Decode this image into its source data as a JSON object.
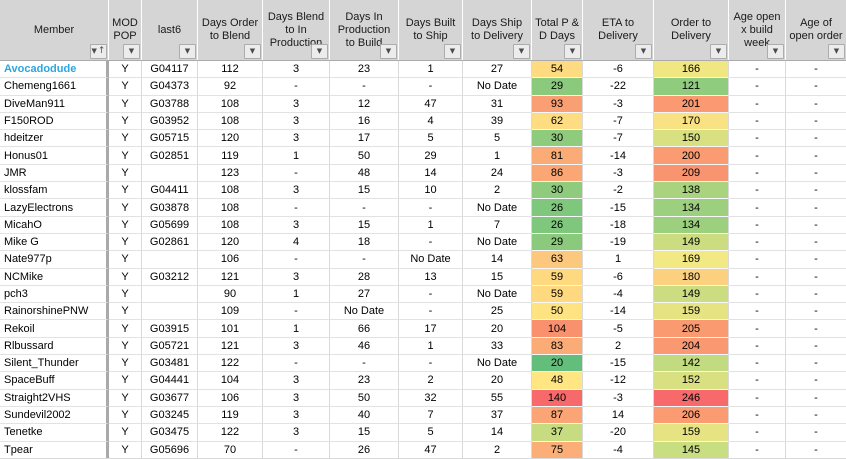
{
  "table": {
    "columns": [
      {
        "key": "member",
        "label": "Member",
        "sorted_ascending": true
      },
      {
        "key": "mod_pop",
        "label": "MOD POP"
      },
      {
        "key": "last6",
        "label": "last6"
      },
      {
        "key": "order_blend",
        "label": "Days Order to Blend"
      },
      {
        "key": "blend_prod",
        "label": "Days Blend to  In Production"
      },
      {
        "key": "prod_build",
        "label": "Days In Production to Build"
      },
      {
        "key": "built_ship",
        "label": "Days Built to Ship"
      },
      {
        "key": "ship_deliv",
        "label": "Days Ship to Delivery"
      },
      {
        "key": "total_pd",
        "label": "Total P & D Days"
      },
      {
        "key": "eta",
        "label": "ETA to Delivery"
      },
      {
        "key": "order_deliv",
        "label": "Order to Delivery"
      },
      {
        "key": "age_build",
        "label": "Age open x build week"
      },
      {
        "key": "age_order",
        "label": "Age of open order"
      }
    ],
    "rows": [
      {
        "member": "Avocadodude",
        "link": true,
        "mod_pop": "Y",
        "last6": "G04117",
        "order_blend": 112,
        "blend_prod": 3,
        "prod_build": 23,
        "built_ship": 1,
        "ship_deliv": 27,
        "total_pd": 54,
        "total_pd_bg": "#FEDB81",
        "eta": -6,
        "order_deliv": 166,
        "order_deliv_bg": "#F0E783",
        "age_build": "-",
        "age_order": "-"
      },
      {
        "member": "Chemeng1661",
        "link": false,
        "mod_pop": "Y",
        "last6": "G04373",
        "order_blend": 92,
        "blend_prod": "-",
        "prod_build": "-",
        "built_ship": "-",
        "ship_deliv": "No Date",
        "total_pd": 29,
        "total_pd_bg": "#8BCA7D",
        "eta": -22,
        "order_deliv": 121,
        "order_deliv_bg": "#90CC7E",
        "age_build": "-",
        "age_order": "-"
      },
      {
        "member": "DiveMan911",
        "link": false,
        "mod_pop": "Y",
        "last6": "G03788",
        "order_blend": 108,
        "blend_prod": 3,
        "prod_build": 12,
        "built_ship": 47,
        "ship_deliv": 31,
        "total_pd": 93,
        "total_pd_bg": "#FA9F73",
        "eta": -3,
        "order_deliv": 201,
        "order_deliv_bg": "#FA9972",
        "age_build": "-",
        "age_order": "-"
      },
      {
        "member": "F150ROD",
        "link": false,
        "mod_pop": "Y",
        "last6": "G03952",
        "order_blend": 108,
        "blend_prod": 3,
        "prod_build": 16,
        "built_ship": 4,
        "ship_deliv": 39,
        "total_pd": 62,
        "total_pd_bg": "#FEDC81",
        "eta": -7,
        "order_deliv": 170,
        "order_deliv_bg": "#F9E283",
        "age_build": "-",
        "age_order": "-"
      },
      {
        "member": "hdeitzer",
        "link": false,
        "mod_pop": "Y",
        "last6": "G05715",
        "order_blend": 120,
        "blend_prod": 3,
        "prod_build": 17,
        "built_ship": 5,
        "ship_deliv": 5,
        "total_pd": 30,
        "total_pd_bg": "#8ECB7D",
        "eta": -7,
        "order_deliv": 150,
        "order_deliv_bg": "#D8E081",
        "age_build": "-",
        "age_order": "-"
      },
      {
        "member": "Honus01",
        "link": false,
        "mod_pop": "Y",
        "last6": "G02851",
        "order_blend": 119,
        "blend_prod": 1,
        "prod_build": 50,
        "built_ship": 29,
        "ship_deliv": 1,
        "total_pd": 81,
        "total_pd_bg": "#FBAC76",
        "eta": -14,
        "order_deliv": 200,
        "order_deliv_bg": "#FA9B72",
        "age_build": "-",
        "age_order": "-"
      },
      {
        "member": "JMR",
        "link": false,
        "mod_pop": "Y",
        "last6": "",
        "order_blend": 123,
        "blend_prod": "-",
        "prod_build": 48,
        "built_ship": 14,
        "ship_deliv": 24,
        "total_pd": 86,
        "total_pd_bg": "#FBA775",
        "eta": -3,
        "order_deliv": 209,
        "order_deliv_bg": "#F99470",
        "age_build": "-",
        "age_order": "-"
      },
      {
        "member": "klossfam",
        "link": false,
        "mod_pop": "Y",
        "last6": "G04411",
        "order_blend": 108,
        "blend_prod": 3,
        "prod_build": 15,
        "built_ship": 10,
        "ship_deliv": 2,
        "total_pd": 30,
        "total_pd_bg": "#8ECB7D",
        "eta": -2,
        "order_deliv": 138,
        "order_deliv_bg": "#A9D37E",
        "age_build": "-",
        "age_order": "-"
      },
      {
        "member": "LazyElectrons",
        "link": false,
        "mod_pop": "Y",
        "last6": "G03878",
        "order_blend": 108,
        "blend_prod": "-",
        "prod_build": "-",
        "built_ship": "-",
        "ship_deliv": "No Date",
        "total_pd": 26,
        "total_pd_bg": "#7FC77C",
        "eta": -15,
        "order_deliv": 134,
        "order_deliv_bg": "#9DD07E",
        "age_build": "-",
        "age_order": "-"
      },
      {
        "member": "MicahO",
        "link": false,
        "mod_pop": "Y",
        "last6": "G05699",
        "order_blend": 108,
        "blend_prod": 3,
        "prod_build": 15,
        "built_ship": 1,
        "ship_deliv": 7,
        "total_pd": 26,
        "total_pd_bg": "#7FC77C",
        "eta": -18,
        "order_deliv": 134,
        "order_deliv_bg": "#9DD07E",
        "age_build": "-",
        "age_order": "-"
      },
      {
        "member": "Mike G",
        "link": false,
        "mod_pop": "Y",
        "last6": "G02861",
        "order_blend": 120,
        "blend_prod": 4,
        "prod_build": 18,
        "built_ship": "-",
        "ship_deliv": "No Date",
        "total_pd": 29,
        "total_pd_bg": "#8BCA7D",
        "eta": -19,
        "order_deliv": 149,
        "order_deliv_bg": "#CBDD80",
        "age_build": "-",
        "age_order": "-"
      },
      {
        "member": "Nate977p",
        "link": false,
        "mod_pop": "Y",
        "last6": "",
        "order_blend": 106,
        "blend_prod": "-",
        "prod_build": "-",
        "built_ship": "No Date",
        "ship_deliv": 14,
        "total_pd": 63,
        "total_pd_bg": "#FCC87D",
        "eta": 1,
        "order_deliv": 169,
        "order_deliv_bg": "#F2E884",
        "age_build": "-",
        "age_order": "-"
      },
      {
        "member": "NCMike",
        "link": false,
        "mod_pop": "Y",
        "last6": "G03212",
        "order_blend": 121,
        "blend_prod": 3,
        "prod_build": 28,
        "built_ship": 13,
        "ship_deliv": 15,
        "total_pd": 59,
        "total_pd_bg": "#FED980",
        "eta": -6,
        "order_deliv": 180,
        "order_deliv_bg": "#FBD07E",
        "age_build": "-",
        "age_order": "-"
      },
      {
        "member": "pch3",
        "link": false,
        "mod_pop": "Y",
        "last6": "",
        "order_blend": 90,
        "blend_prod": 1,
        "prod_build": 27,
        "built_ship": "-",
        "ship_deliv": "No Date",
        "total_pd": 59,
        "total_pd_bg": "#FED980",
        "eta": -4,
        "order_deliv": 149,
        "order_deliv_bg": "#CBDD80",
        "age_build": "-",
        "age_order": "-"
      },
      {
        "member": "RainorshinePNW",
        "link": false,
        "mod_pop": "Y",
        "last6": "",
        "order_blend": 109,
        "blend_prod": "-",
        "prod_build": "No Date",
        "built_ship": "-",
        "ship_deliv": 25,
        "total_pd": 50,
        "total_pd_bg": "#FFE383",
        "eta": -14,
        "order_deliv": 159,
        "order_deliv_bg": "#E6E482",
        "age_build": "-",
        "age_order": "-"
      },
      {
        "member": "Rekoil",
        "link": false,
        "mod_pop": "Y",
        "last6": "G03915",
        "order_blend": 101,
        "blend_prod": 1,
        "prod_build": 66,
        "built_ship": 17,
        "ship_deliv": 20,
        "total_pd": 104,
        "total_pd_bg": "#F9916F",
        "eta": -5,
        "order_deliv": 205,
        "order_deliv_bg": "#FA9A70",
        "age_build": "-",
        "age_order": "-"
      },
      {
        "member": "Rlbussard",
        "link": false,
        "mod_pop": "Y",
        "last6": "G05721",
        "order_blend": 121,
        "blend_prod": 3,
        "prod_build": 46,
        "built_ship": 1,
        "ship_deliv": 33,
        "total_pd": 83,
        "total_pd_bg": "#FBAB76",
        "eta": 2,
        "order_deliv": 204,
        "order_deliv_bg": "#FA9971",
        "age_build": "-",
        "age_order": "-"
      },
      {
        "member": "Silent_Thunder",
        "link": false,
        "mod_pop": "Y",
        "last6": "G03481",
        "order_blend": 122,
        "blend_prod": "-",
        "prod_build": "-",
        "built_ship": "-",
        "ship_deliv": "No Date",
        "total_pd": 20,
        "total_pd_bg": "#63BE7B",
        "eta": -15,
        "order_deliv": 142,
        "order_deliv_bg": "#C2DA80",
        "age_build": "-",
        "age_order": "-"
      },
      {
        "member": "SpaceBuff",
        "link": false,
        "mod_pop": "Y",
        "last6": "G04441",
        "order_blend": 104,
        "blend_prod": 3,
        "prod_build": 23,
        "built_ship": 2,
        "ship_deliv": 20,
        "total_pd": 48,
        "total_pd_bg": "#FFE683",
        "eta": -12,
        "order_deliv": 152,
        "order_deliv_bg": "#D9E081",
        "age_build": "-",
        "age_order": "-"
      },
      {
        "member": "Straight2VHS",
        "link": false,
        "mod_pop": "Y",
        "last6": "G03677",
        "order_blend": 106,
        "blend_prod": 3,
        "prod_build": 50,
        "built_ship": 32,
        "ship_deliv": 55,
        "total_pd": 140,
        "total_pd_bg": "#F8696B",
        "eta": -3,
        "order_deliv": 246,
        "order_deliv_bg": "#F8696B",
        "age_build": "-",
        "age_order": "-"
      },
      {
        "member": "Sundevil2002",
        "link": false,
        "mod_pop": "Y",
        "last6": "G03245",
        "order_blend": 119,
        "blend_prod": 3,
        "prod_build": 40,
        "built_ship": 7,
        "ship_deliv": 37,
        "total_pd": 87,
        "total_pd_bg": "#FBA476",
        "eta": 14,
        "order_deliv": 206,
        "order_deliv_bg": "#FA9B72",
        "age_build": "-",
        "age_order": "-"
      },
      {
        "member": "Tenetke",
        "link": false,
        "mod_pop": "Y",
        "last6": "G03475",
        "order_blend": 122,
        "blend_prod": 3,
        "prod_build": 15,
        "built_ship": 5,
        "ship_deliv": 14,
        "total_pd": 37,
        "total_pd_bg": "#C7DC80",
        "eta": -20,
        "order_deliv": 159,
        "order_deliv_bg": "#E6E482",
        "age_build": "-",
        "age_order": "-"
      },
      {
        "member": "Tpear",
        "link": false,
        "mod_pop": "Y",
        "last6": "G05696",
        "order_blend": 70,
        "blend_prod": "-",
        "prod_build": 26,
        "built_ship": 47,
        "ship_deliv": 2,
        "total_pd": 75,
        "total_pd_bg": "#FBAE77",
        "eta": -4,
        "order_deliv": 145,
        "order_deliv_bg": "#C9DD81",
        "age_build": "-",
        "age_order": "-"
      }
    ]
  },
  "icons": {
    "filter_dropdown": "▼",
    "sort_ascending_arrow": "↑"
  },
  "colors": {
    "header_bg": "#D5D5D5",
    "grid_line": "#D9D9D9",
    "member_link": "#2BA7DF",
    "pane_divider": "#A9A9A9"
  }
}
